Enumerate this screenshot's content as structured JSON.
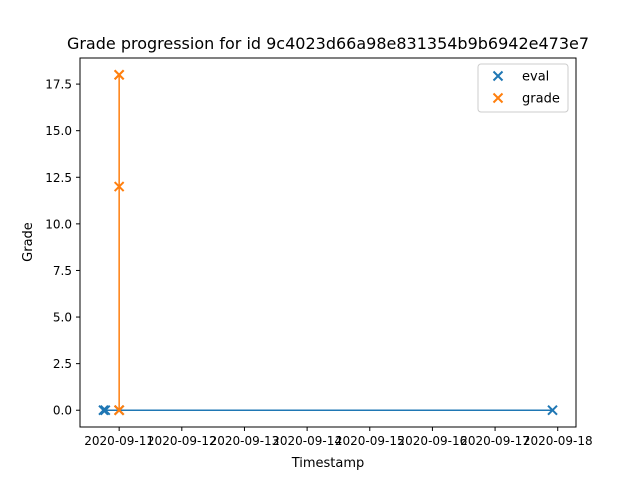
{
  "chart_data": {
    "type": "scatter",
    "title": "Grade progression for id 9c4023d66a98e831354b9b6942e473e7",
    "xlabel": "Timestamp",
    "ylabel": "Grade",
    "xlim": [
      "2020-09-10T09:00",
      "2020-09-18T07:00"
    ],
    "ylim": [
      -0.9,
      18.9
    ],
    "x_ticks": [
      "2020-09-11",
      "2020-09-12",
      "2020-09-13",
      "2020-09-14",
      "2020-09-15",
      "2020-09-16",
      "2020-09-17",
      "2020-09-18"
    ],
    "y_ticks": [
      0.0,
      2.5,
      5.0,
      7.5,
      10.0,
      12.5,
      15.0,
      17.5
    ],
    "y_tick_labels": [
      "0.0",
      "2.5",
      "5.0",
      "7.5",
      "10.0",
      "12.5",
      "15.0",
      "17.5"
    ],
    "grid": false,
    "legend_position": "top-right",
    "series": [
      {
        "name": "eval",
        "color": "#1f77b4",
        "marker": "x",
        "connected": true,
        "x": [
          "2020-09-10T18:00",
          "2020-09-10T18:40",
          "2020-09-11T00:00",
          "2020-09-17T22:00"
        ],
        "y": [
          0,
          0,
          0,
          0
        ]
      },
      {
        "name": "grade",
        "color": "#ff7f0e",
        "marker": "x",
        "connected": true,
        "x": [
          "2020-09-11T00:00",
          "2020-09-11T00:00",
          "2020-09-11T00:00",
          "2020-09-11T00:00",
          "2020-09-11T00:00"
        ],
        "y": [
          0,
          12,
          18,
          18,
          0
        ]
      }
    ]
  }
}
